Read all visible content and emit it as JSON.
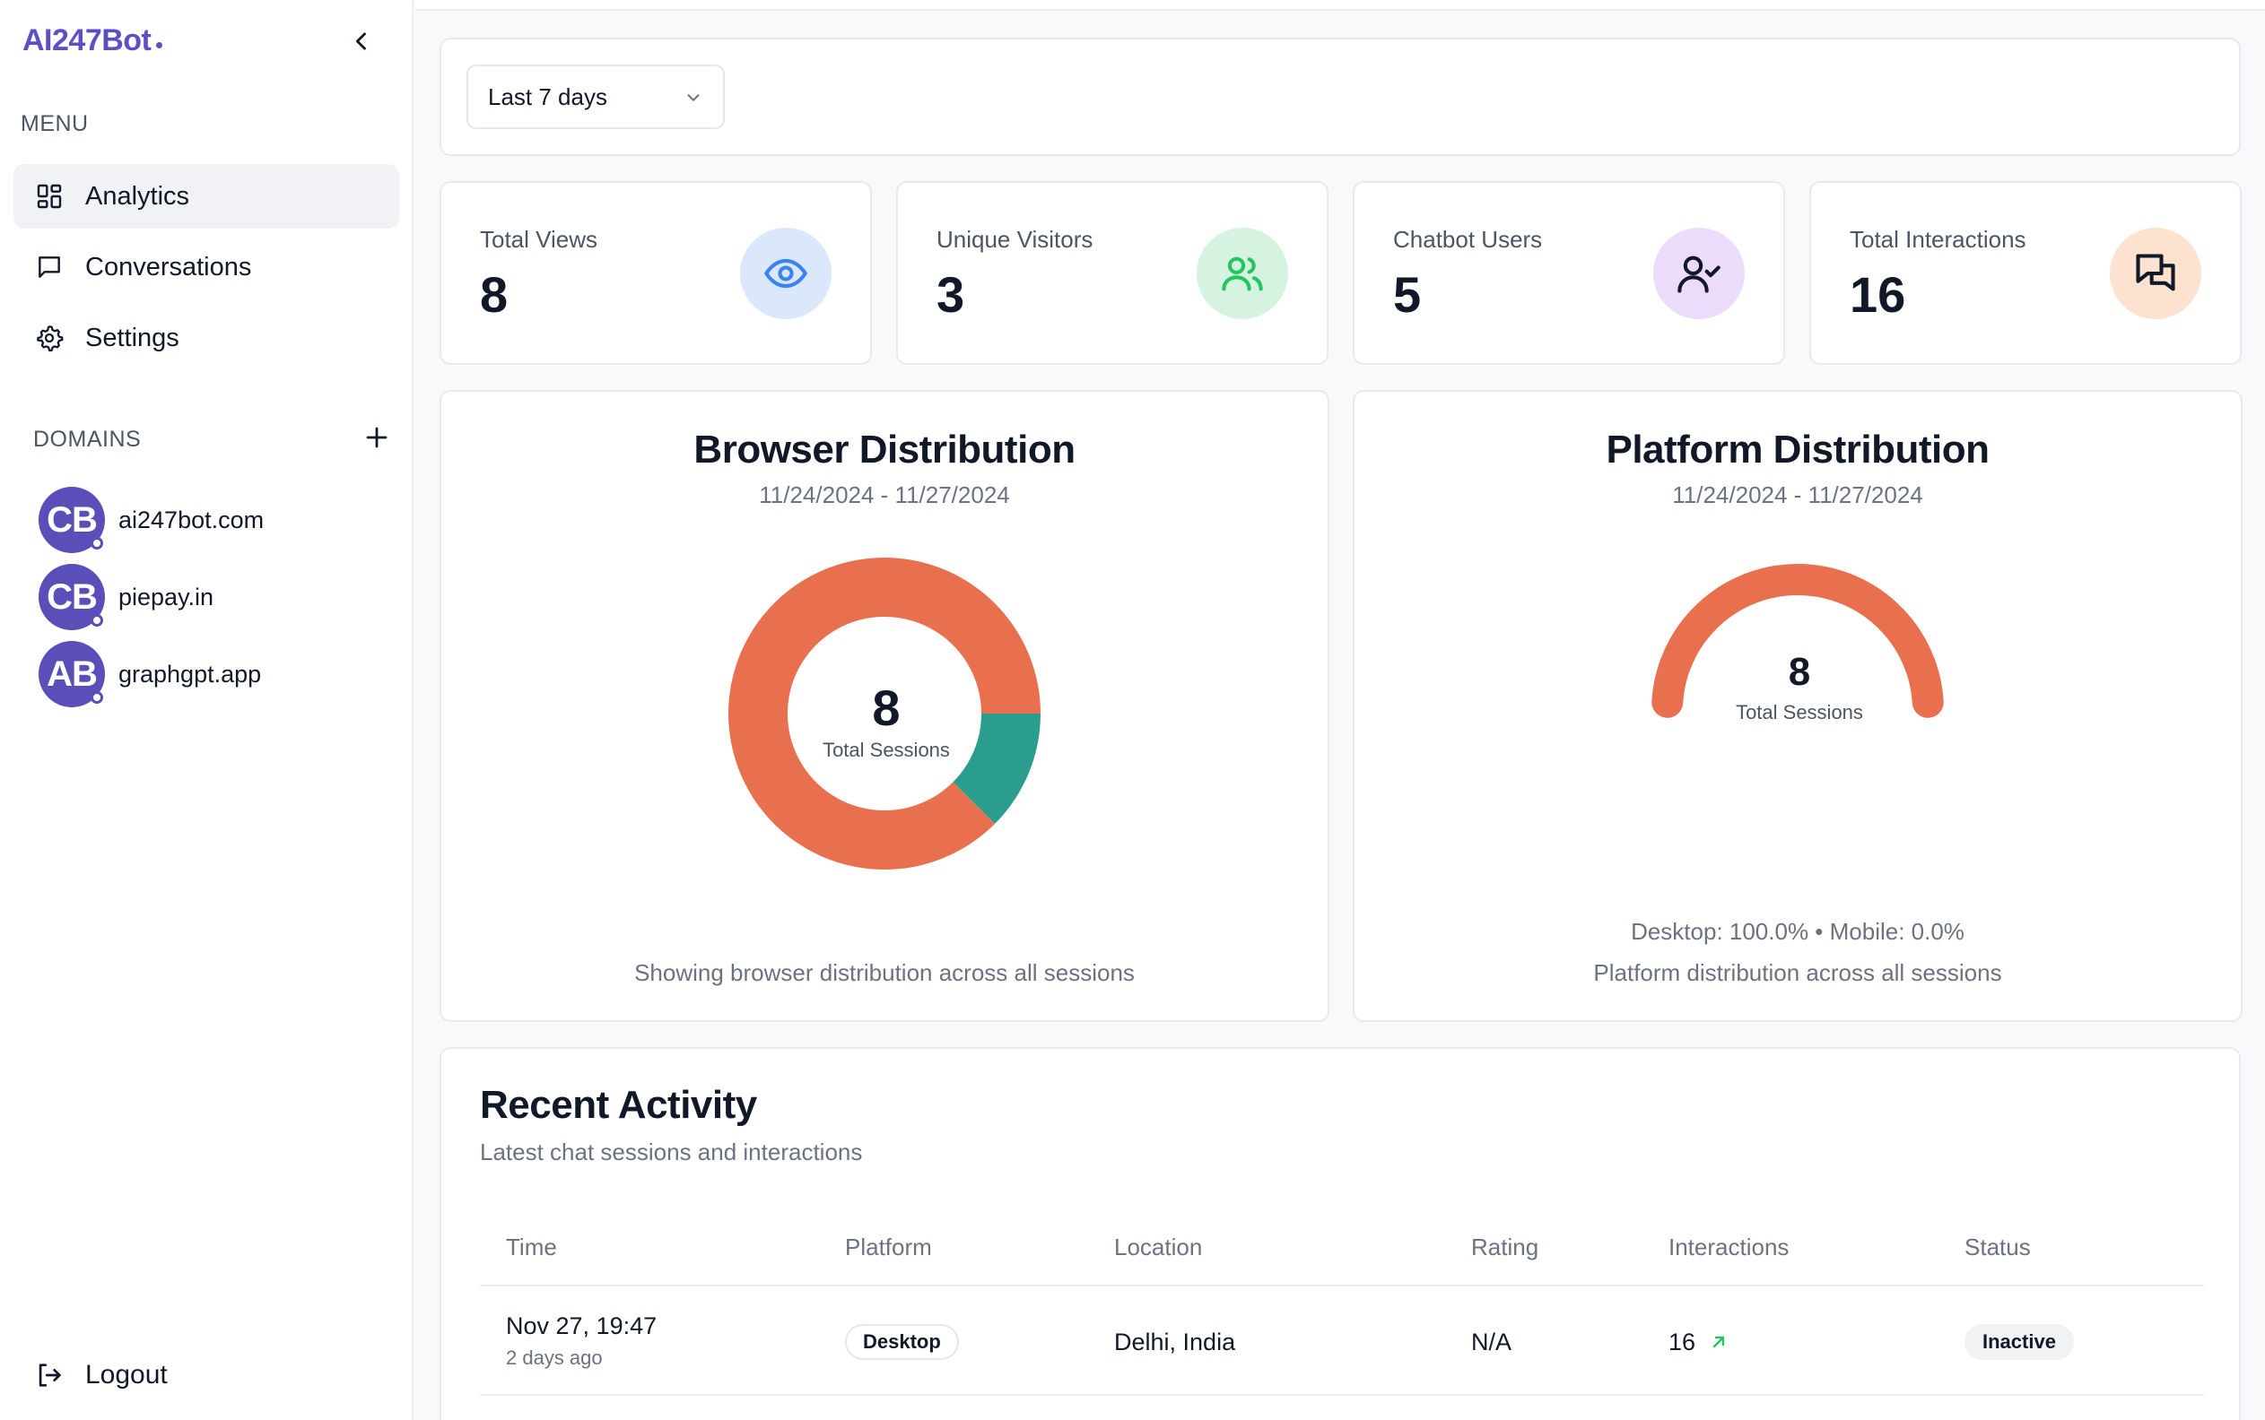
{
  "sidebar": {
    "brand": "AI247Bot",
    "menu_title": "MENU",
    "nav": [
      {
        "label": "Analytics",
        "icon": "grid-icon",
        "active": true
      },
      {
        "label": "Conversations",
        "icon": "message-square-icon",
        "active": false
      },
      {
        "label": "Settings",
        "icon": "gear-icon",
        "active": false
      }
    ],
    "domains_title": "DOMAINS",
    "domains": [
      {
        "initials": "CB",
        "label": "ai247bot.com"
      },
      {
        "initials": "CB",
        "label": "piepay.in"
      },
      {
        "initials": "AB",
        "label": "graphgpt.app"
      }
    ],
    "logout_label": "Logout"
  },
  "filter": {
    "range_label": "Last 7 days"
  },
  "stats": [
    {
      "label": "Total Views",
      "value": "8",
      "icon": "eye-icon",
      "bg": "#dbe7fb",
      "color": "#3b82f6"
    },
    {
      "label": "Unique Visitors",
      "value": "3",
      "icon": "users-icon",
      "bg": "#d6f3e2",
      "color": "#22c55e"
    },
    {
      "label": "Chatbot Users",
      "value": "5",
      "icon": "user-check-icon",
      "bg": "#ecdcfb",
      "color": "#111827"
    },
    {
      "label": "Total Interactions",
      "value": "16",
      "icon": "messages-icon",
      "bg": "#fde2d0",
      "color": "#111827"
    }
  ],
  "browser": {
    "title": "Browser Distribution",
    "date_range": "11/24/2024 - 11/27/2024",
    "center_value": "8",
    "center_label": "Total Sessions",
    "footer": "Showing browser distribution across all sessions"
  },
  "platform": {
    "title": "Platform Distribution",
    "date_range": "11/24/2024 - 11/27/2024",
    "center_value": "8",
    "center_label": "Total Sessions",
    "summary": "Desktop: 100.0% • Mobile: 0.0%",
    "footer": "Platform distribution across all sessions"
  },
  "chart_data": [
    {
      "type": "pie",
      "title": "Browser Distribution",
      "slices": [
        {
          "value": 7,
          "color": "#e8704f"
        },
        {
          "value": 1,
          "color": "#2a9d8f"
        }
      ],
      "total": 8
    },
    {
      "type": "pie",
      "title": "Platform Distribution",
      "slices": [
        {
          "name": "Desktop",
          "value": 100.0,
          "color": "#e8704f"
        },
        {
          "name": "Mobile",
          "value": 0.0,
          "color": "#2a9d8f"
        }
      ],
      "total": 8
    }
  ],
  "activity": {
    "title": "Recent Activity",
    "subtitle": "Latest chat sessions and interactions",
    "columns": [
      "Time",
      "Platform",
      "Location",
      "Rating",
      "Interactions",
      "Status"
    ],
    "rows": [
      {
        "time": "Nov 27, 19:47",
        "relative": "2 days ago",
        "platform": "Desktop",
        "location": "Delhi, India",
        "rating": "N/A",
        "interactions": "16",
        "status": "Inactive"
      }
    ]
  },
  "colors": {
    "brand": "#5b4fc4",
    "accent_orange": "#e8704f",
    "accent_teal": "#2a9d8f",
    "trend_green": "#22c55e"
  }
}
